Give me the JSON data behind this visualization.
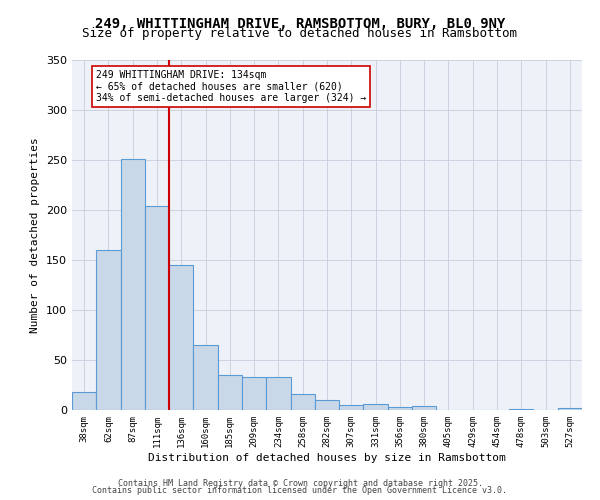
{
  "title1": "249, WHITTINGHAM DRIVE, RAMSBOTTOM, BURY, BL0 9NY",
  "title2": "Size of property relative to detached houses in Ramsbottom",
  "xlabel": "Distribution of detached houses by size in Ramsbottom",
  "ylabel": "Number of detached properties",
  "categories": [
    "38sqm",
    "62sqm",
    "87sqm",
    "111sqm",
    "136sqm",
    "160sqm",
    "185sqm",
    "209sqm",
    "234sqm",
    "258sqm",
    "282sqm",
    "307sqm",
    "331sqm",
    "356sqm",
    "380sqm",
    "405sqm",
    "429sqm",
    "454sqm",
    "478sqm",
    "503sqm",
    "527sqm"
  ],
  "values": [
    18,
    160,
    251,
    204,
    145,
    65,
    35,
    33,
    33,
    16,
    10,
    5,
    6,
    3,
    4,
    0,
    0,
    0,
    1,
    0,
    2
  ],
  "bar_color": "#c8d8e8",
  "bar_edge_color": "#5b9bd5",
  "vline_x": 4,
  "vline_color": "#cc0000",
  "annotation_text": "249 WHITTINGHAM DRIVE: 134sqm\n← 65% of detached houses are smaller (620)\n34% of semi-detached houses are larger (324) →",
  "annotation_box_color": "#ffffff",
  "annotation_box_edge": "#cc0000",
  "bg_color": "#eef2f8",
  "ylim": [
    0,
    350
  ],
  "footer1": "Contains HM Land Registry data © Crown copyright and database right 2025.",
  "footer2": "Contains public sector information licensed under the Open Government Licence v3.0."
}
